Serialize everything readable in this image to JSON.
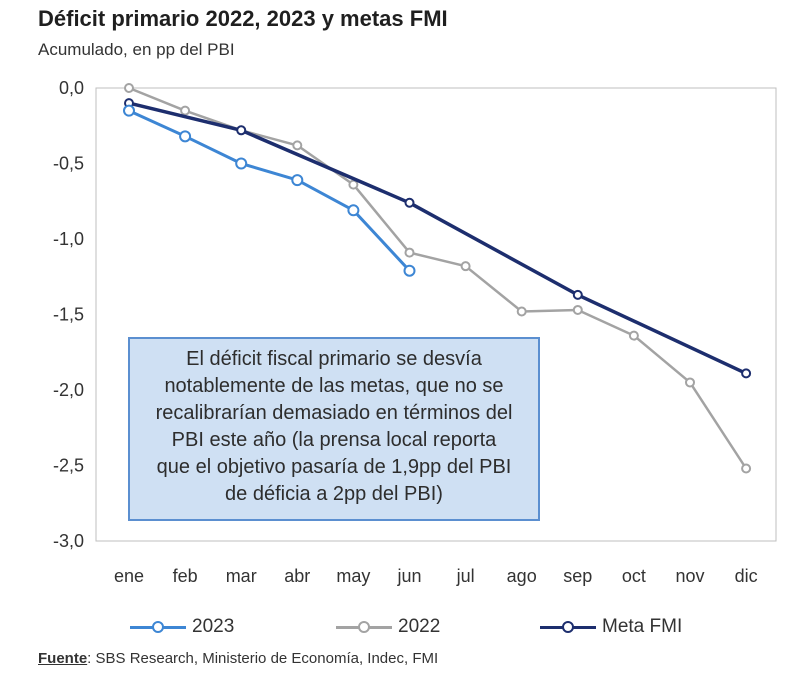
{
  "header": {
    "title": "Déficit primario 2022, 2023 y metas FMI",
    "subtitle": "Acumulado, en pp del PBI"
  },
  "annotation": {
    "lines": [
      "El déficit fiscal primario se desvía",
      "notablemente de las metas, que no se",
      "recalibrarían demasiado en términos del",
      "PBI este año (la prensa local reporta",
      "que el objetivo pasaría de 1,9pp del PBI",
      "de déficia a 2pp del PBI)"
    ]
  },
  "footer": {
    "source_label": "Fuente",
    "source_text": ": SBS Research, Ministerio de Economía, Indec, FMI"
  },
  "colors": {
    "series_2023": "#3d86d4",
    "series_2022": "#a3a3a3",
    "series_meta": "#1d2e6e",
    "axis": "#bfbfbf"
  },
  "chart_data": {
    "type": "line",
    "title": "Déficit primario 2022, 2023 y metas FMI",
    "subtitle": "Acumulado, en pp del PBI",
    "xlabel": "",
    "ylabel": "",
    "categories": [
      "ene",
      "feb",
      "mar",
      "abr",
      "may",
      "jun",
      "jul",
      "ago",
      "sep",
      "oct",
      "nov",
      "dic"
    ],
    "ylim": [
      -3.0,
      0.0
    ],
    "yticks": [
      0.0,
      -0.5,
      -1.0,
      -1.5,
      -2.0,
      -2.5,
      -3.0
    ],
    "ytick_labels": [
      "0,0",
      "-0,5",
      "-1,0",
      "-1,5",
      "-2,0",
      "-2,5",
      "-3,0"
    ],
    "grid": false,
    "legend_position": "bottom",
    "series": [
      {
        "name": "2023",
        "values": [
          -0.15,
          -0.32,
          -0.5,
          -0.61,
          -0.81,
          -1.21,
          null,
          null,
          null,
          null,
          null,
          null
        ]
      },
      {
        "name": "2022",
        "values": [
          0.0,
          -0.15,
          -0.28,
          -0.38,
          -0.64,
          -1.09,
          -1.18,
          -1.48,
          -1.47,
          -1.64,
          -1.95,
          -2.52
        ]
      },
      {
        "name": "Meta FMI",
        "values": [
          -0.1,
          null,
          -0.28,
          null,
          null,
          -0.76,
          null,
          null,
          -1.37,
          null,
          null,
          -1.89
        ]
      }
    ]
  }
}
